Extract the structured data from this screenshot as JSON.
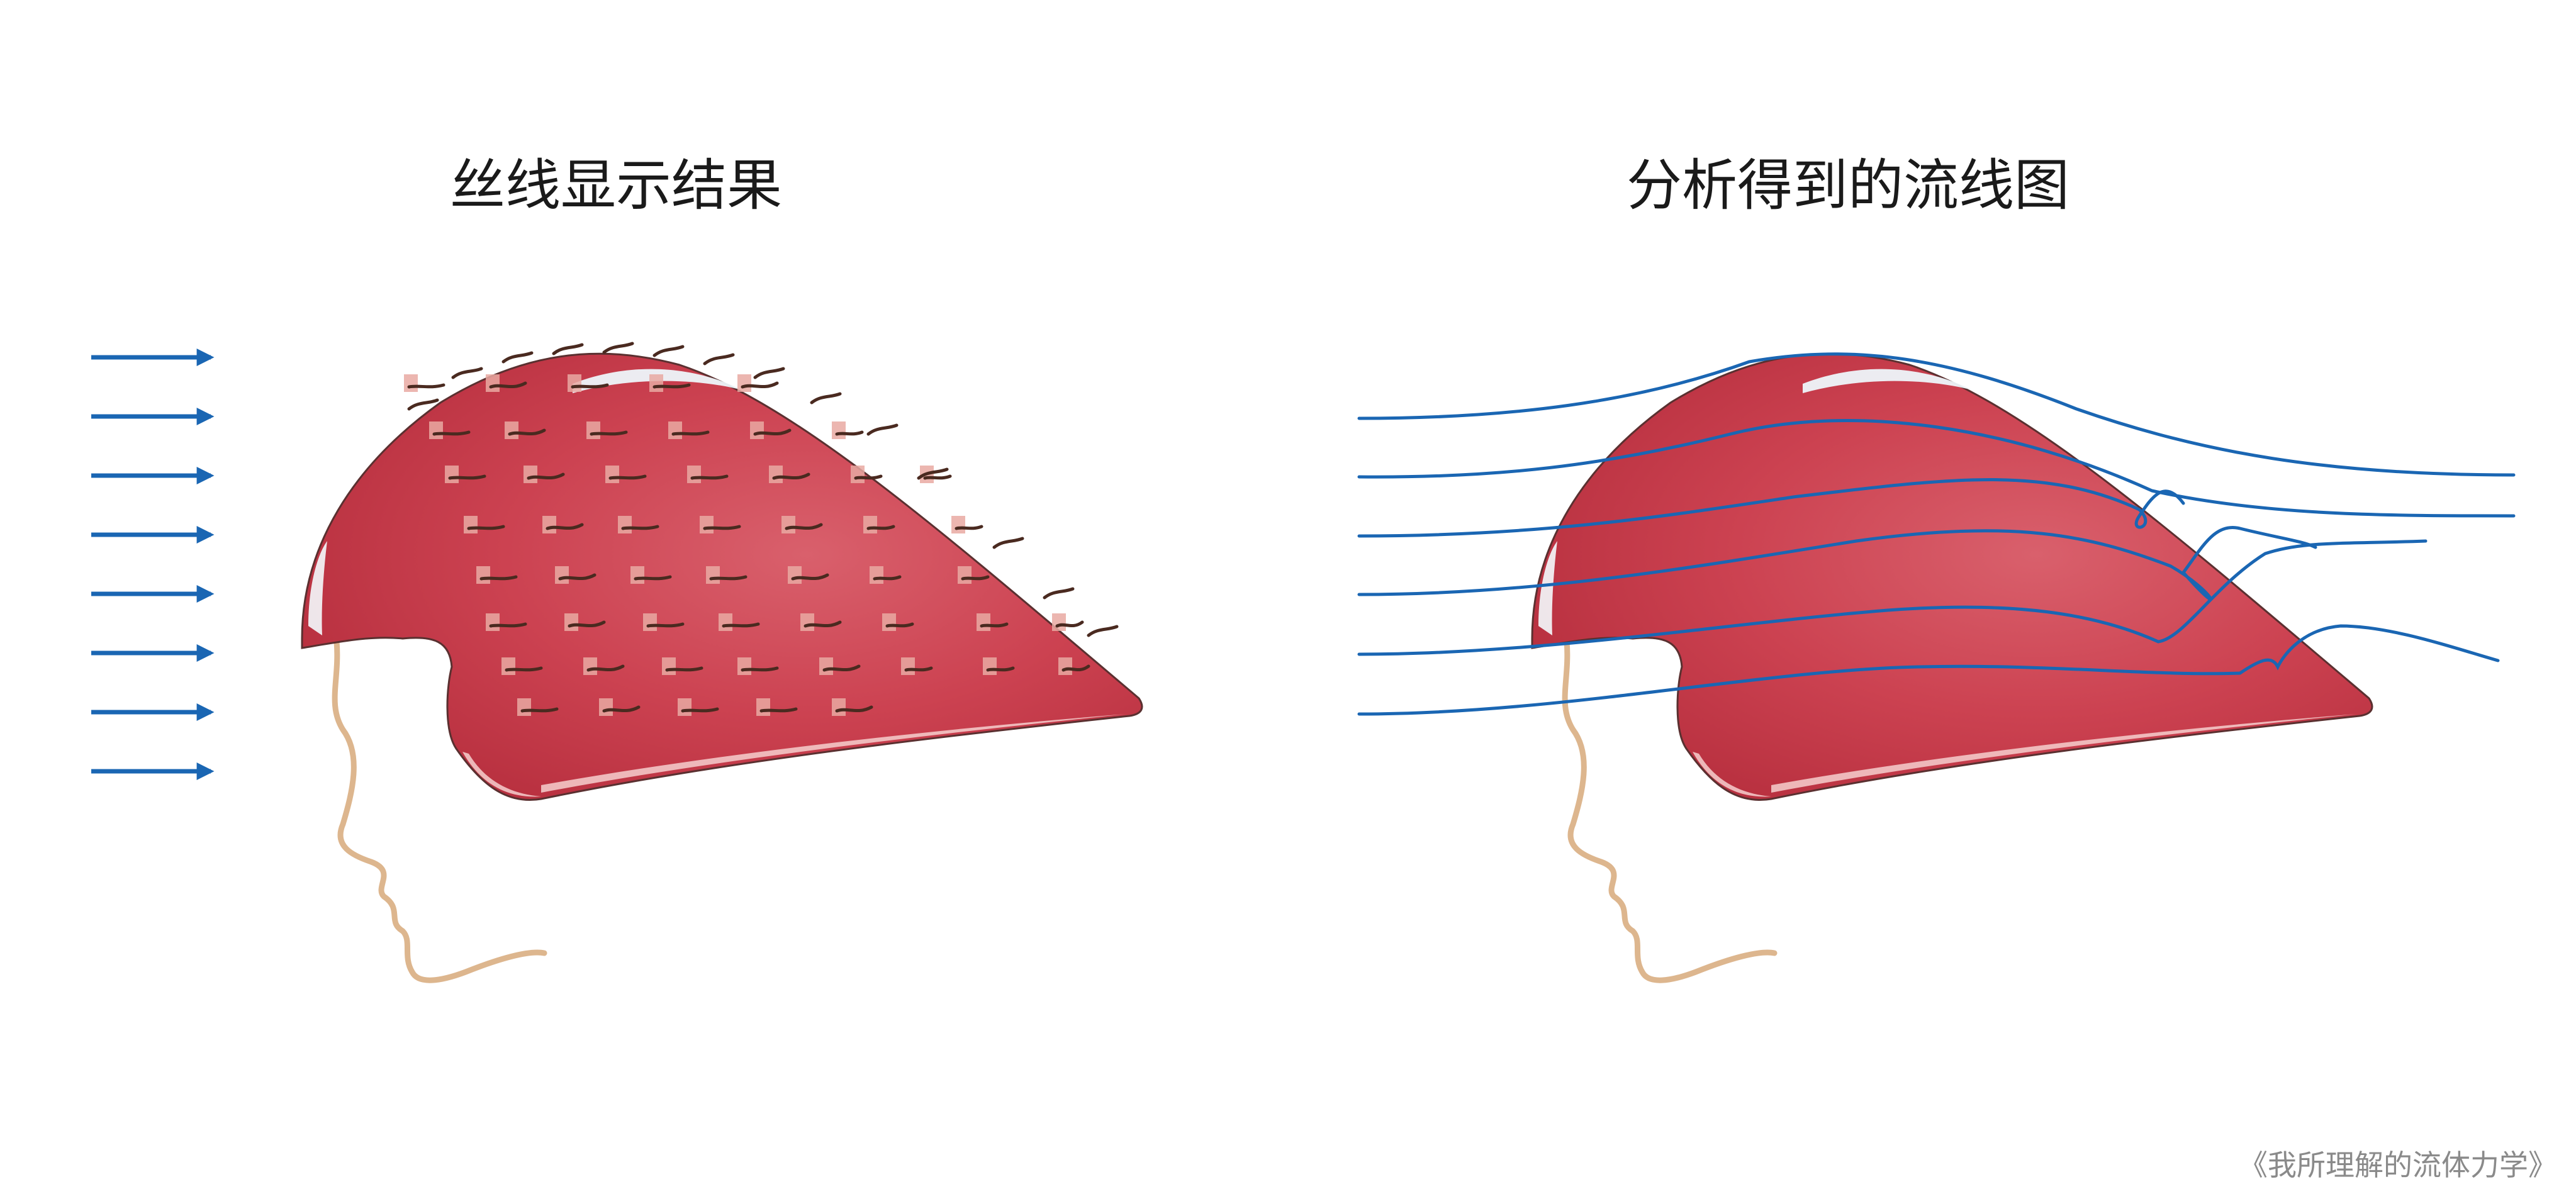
{
  "titles": {
    "left": "丝线显示结果",
    "right": "分析得到的流线图"
  },
  "footer": "《我所理解的流体力学》",
  "colors": {
    "helmet": "#c9394a",
    "helmet_dark": "#a82a38",
    "helmet_highlight": "#e9f2f7",
    "helmet_edge_light": "#f3c6c6",
    "tuft_patch": "#e9a9a2",
    "tuft": "#4a2a20",
    "streamline": "#1a66b3",
    "arrow": "#1a66b3",
    "face": "#ddb68e"
  },
  "icons": {
    "flow_arrow": "right-arrow-icon",
    "head": "head-profile-icon"
  }
}
